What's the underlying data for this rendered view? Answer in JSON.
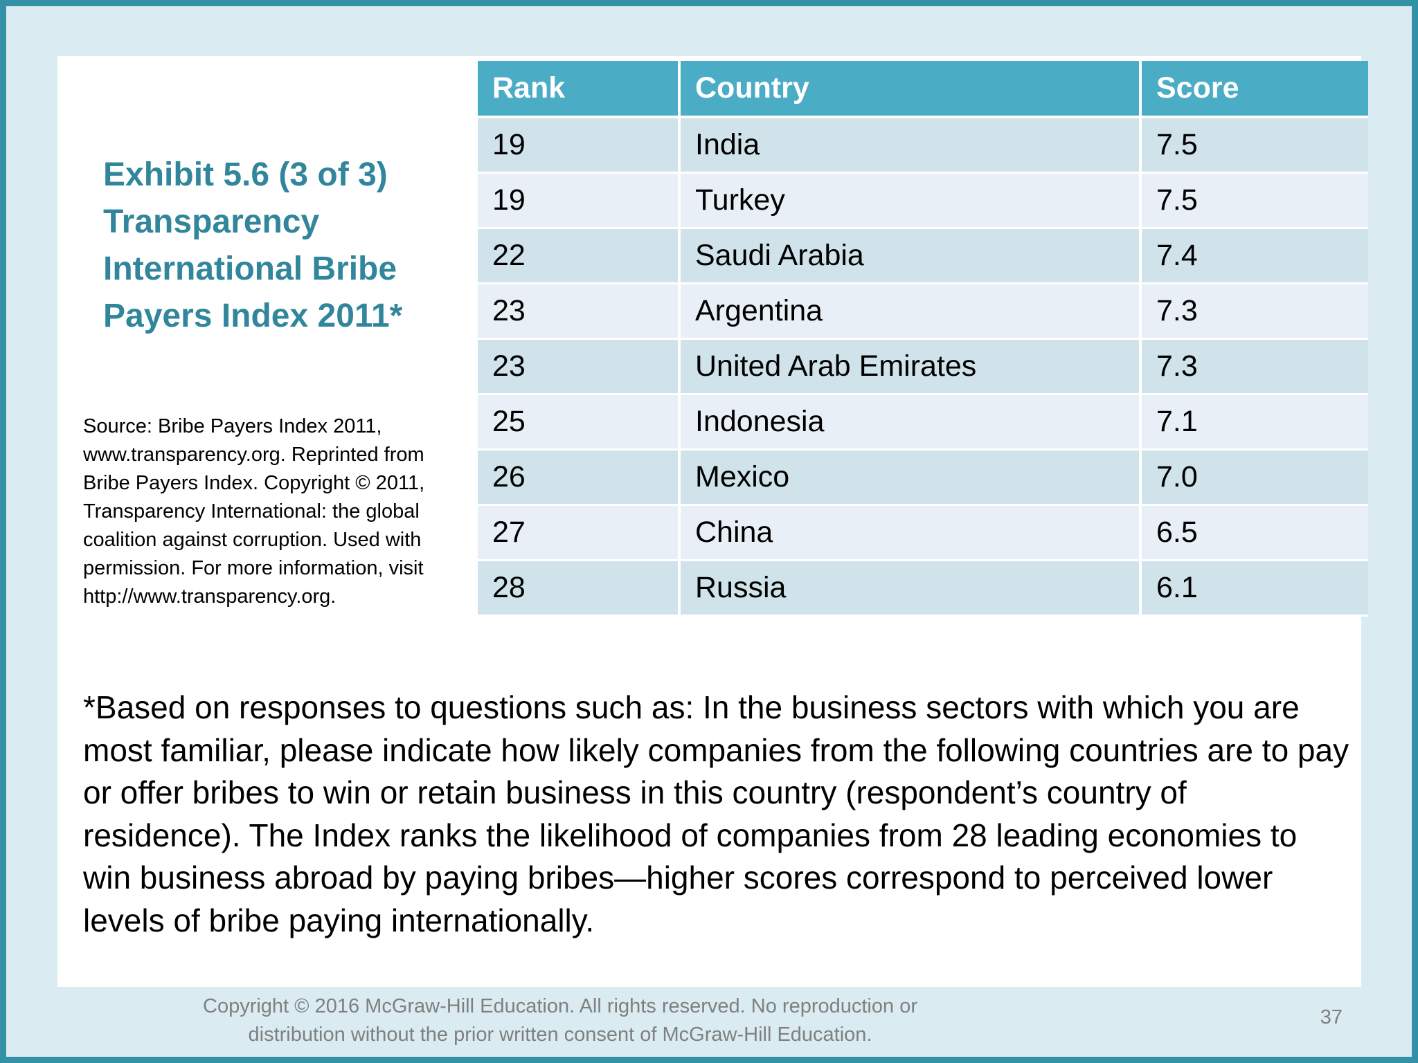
{
  "title": {
    "lines": [
      "Exhibit 5.6  (3 of 3)",
      "Transparency",
      "International Bribe",
      "Payers Index 2011*"
    ]
  },
  "source": "Source: Bribe Payers Index 2011, www.transparency.org. Reprinted from Bribe Payers Index. Copyright © 2011, Transparency International: the global coalition against corruption. Used with permission. For more information, visit http://www.transparency.org.",
  "table": {
    "headers": [
      "Rank",
      "Country",
      "Score"
    ],
    "rows": [
      [
        "19",
        "India",
        "7.5"
      ],
      [
        "19",
        "Turkey",
        "7.5"
      ],
      [
        "22",
        "Saudi Arabia",
        "7.4"
      ],
      [
        "23",
        "Argentina",
        "7.3"
      ],
      [
        "23",
        "United Arab Emirates",
        "7.3"
      ],
      [
        "25",
        "Indonesia",
        "7.1"
      ],
      [
        "26",
        "Mexico",
        "7.0"
      ],
      [
        "27",
        "China",
        "6.5"
      ],
      [
        "28",
        "Russia",
        "6.1"
      ]
    ]
  },
  "footnote": "*Based on responses to questions such as: In the business sectors with which you are most familiar, please indicate how likely companies from the following countries are to pay or offer bribes to win or retain business in this country (respondent’s country of residence). The Index ranks the likelihood of companies from 28 leading economies to win business abroad by paying bribes—higher scores correspond to perceived lower levels of bribe paying internationally.",
  "copyright": {
    "lines": [
      "Copyright © 2016 McGraw-Hill Education. All rights reserved. No reproduction or",
      "distribution without the prior written consent of McGraw-Hill Education."
    ]
  },
  "page_number": "37",
  "colors": {
    "accent": "#31869b",
    "header_fill": "#4bacc6",
    "frame": "#3291a7",
    "background": "#daecf1"
  }
}
